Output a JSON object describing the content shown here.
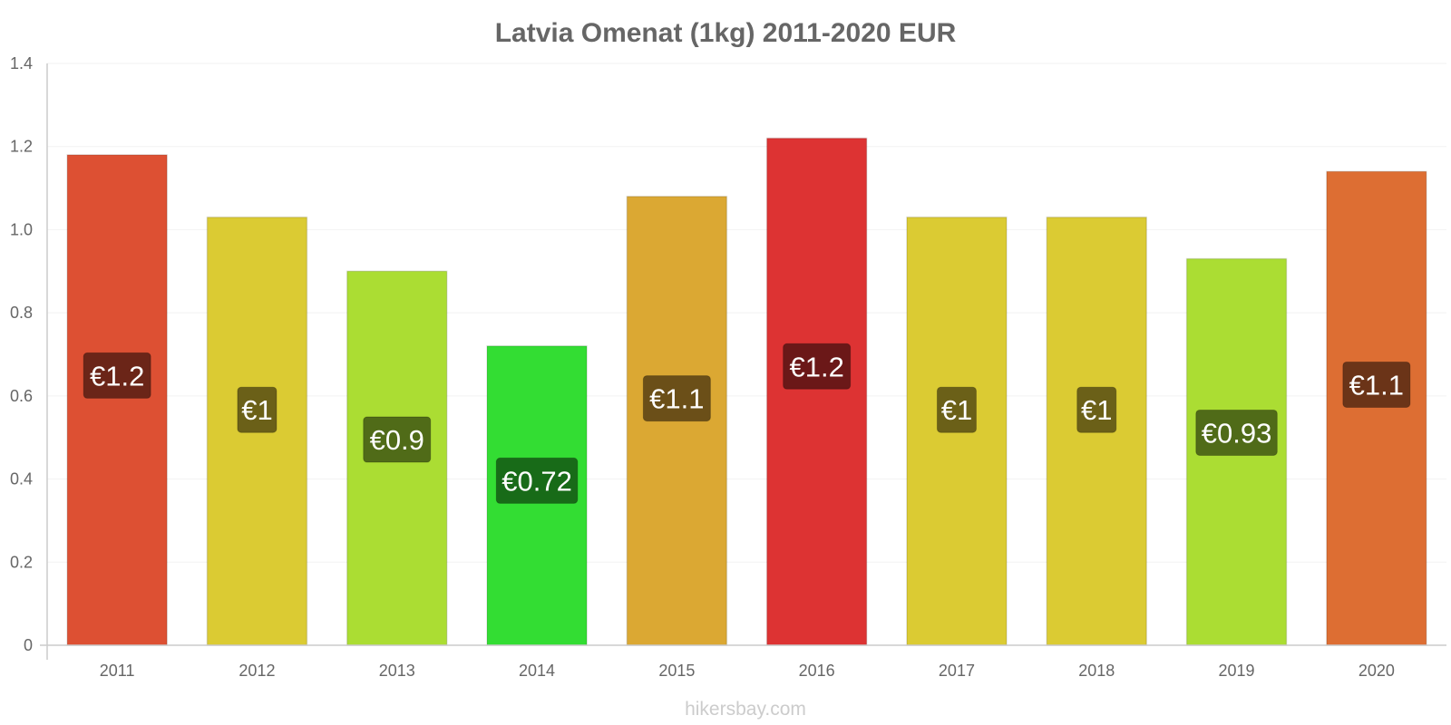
{
  "chart_data": {
    "type": "bar",
    "title": "Latvia Omenat (1kg) 2011-2020 EUR",
    "xlabel": "",
    "ylabel": "",
    "ylim": [
      0,
      1.4
    ],
    "yticks": [
      "0",
      "0.2",
      "0.4",
      "0.6",
      "0.8",
      "1.0",
      "1.2",
      "1.4"
    ],
    "ytick_values": [
      0,
      0.2,
      0.4,
      0.6,
      0.8,
      1.0,
      1.2,
      1.4
    ],
    "categories": [
      "2011",
      "2012",
      "2013",
      "2014",
      "2015",
      "2016",
      "2017",
      "2018",
      "2019",
      "2020"
    ],
    "values": [
      1.18,
      1.03,
      0.9,
      0.72,
      1.08,
      1.22,
      1.03,
      1.03,
      0.93,
      1.14
    ],
    "data_labels": [
      "€1.2",
      "€1",
      "€0.9",
      "€0.72",
      "€1.1",
      "€1.2",
      "€1",
      "€1",
      "€0.93",
      "€1.1"
    ],
    "bar_colors": [
      "#dd5033",
      "#dbcb33",
      "#abdd33",
      "#33dd33",
      "#dba833",
      "#dd3333",
      "#dbcb33",
      "#dbcb33",
      "#abdd33",
      "#dd6e33"
    ],
    "label_colors": [
      "#6b2518",
      "#6b6018",
      "#506b18",
      "#186b18",
      "#6b4f18",
      "#6b1818",
      "#6b6018",
      "#6b6018",
      "#506b18",
      "#6b3418"
    ],
    "grid": true,
    "legend": "none"
  },
  "watermark": "hikersbay.com"
}
